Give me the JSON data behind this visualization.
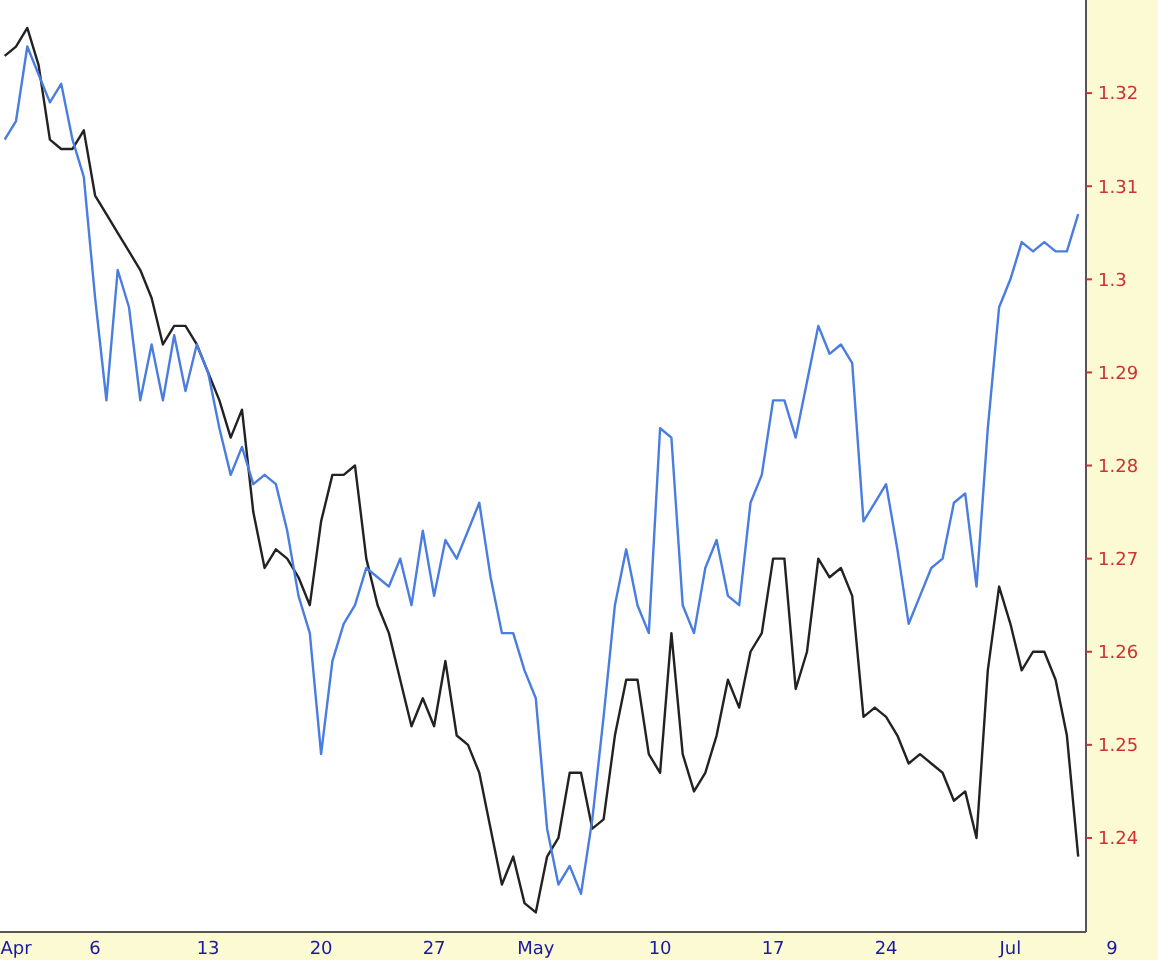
{
  "chart_data": {
    "type": "line",
    "ylim": [
      1.2299,
      1.33
    ],
    "categories": [
      null,
      "Apr",
      null,
      null,
      null,
      null,
      null,
      null,
      "6",
      null,
      null,
      null,
      null,
      null,
      null,
      null,
      null,
      null,
      "13",
      null,
      null,
      null,
      null,
      null,
      null,
      null,
      null,
      null,
      "20",
      null,
      null,
      null,
      null,
      null,
      null,
      null,
      null,
      null,
      "27",
      null,
      null,
      null,
      null,
      null,
      null,
      null,
      null,
      "May",
      null,
      null,
      null,
      null,
      null,
      null,
      null,
      null,
      null,
      null,
      "10",
      null,
      null,
      null,
      null,
      null,
      null,
      null,
      null,
      null,
      "17",
      null,
      null,
      null,
      null,
      null,
      null,
      null,
      null,
      null,
      "24",
      null,
      null,
      null,
      null,
      null,
      null,
      null,
      null,
      null,
      null,
      "Jul",
      null,
      null,
      null,
      null,
      null,
      null,
      null,
      null,
      "9"
    ],
    "yticks": [
      1.24,
      1.25,
      1.26,
      1.27,
      1.28,
      1.29,
      1.3,
      1.31,
      1.32
    ],
    "grid": false,
    "line_style": "solid",
    "marker": "none",
    "series": [
      {
        "color": "#222222",
        "values": [
          1.324,
          1.325,
          1.327,
          1.323,
          1.315,
          1.314,
          1.314,
          1.316,
          1.309,
          1.307,
          1.305,
          1.303,
          1.301,
          1.298,
          1.293,
          1.295,
          1.295,
          1.293,
          1.29,
          1.287,
          1.283,
          1.286,
          1.275,
          1.269,
          1.271,
          1.27,
          1.268,
          1.265,
          1.274,
          1.279,
          1.279,
          1.28,
          1.27,
          1.265,
          1.262,
          1.257,
          1.252,
          1.255,
          1.252,
          1.259,
          1.251,
          1.25,
          1.247,
          1.241,
          1.235,
          1.238,
          1.233,
          1.232,
          1.238,
          1.24,
          1.247,
          1.247,
          1.241,
          1.242,
          1.251,
          1.257,
          1.257,
          1.249,
          1.247,
          1.262,
          1.249,
          1.245,
          1.247,
          1.251,
          1.257,
          1.254,
          1.26,
          1.262,
          1.27,
          1.27,
          1.256,
          1.26,
          1.27,
          1.268,
          1.269,
          1.266,
          1.253,
          1.254,
          1.253,
          1.251,
          1.248,
          1.249,
          1.248,
          1.247,
          1.244,
          1.245,
          1.24,
          1.258,
          1.267,
          1.263,
          1.258,
          1.26,
          1.26,
          1.257,
          1.251,
          1.238,
          null,
          null,
          null
        ]
      },
      {
        "color": "#4a7de0",
        "values": [
          1.315,
          1.317,
          1.325,
          1.322,
          1.319,
          1.321,
          1.315,
          1.311,
          1.298,
          1.287,
          1.301,
          1.297,
          1.287,
          1.293,
          1.287,
          1.294,
          1.288,
          1.293,
          1.29,
          1.284,
          1.279,
          1.282,
          1.278,
          1.279,
          1.278,
          1.273,
          1.266,
          1.262,
          1.249,
          1.259,
          1.263,
          1.265,
          1.269,
          1.268,
          1.267,
          1.27,
          1.265,
          1.273,
          1.266,
          1.272,
          1.27,
          1.273,
          1.276,
          1.268,
          1.262,
          1.262,
          1.258,
          1.255,
          1.241,
          1.235,
          1.237,
          1.234,
          1.242,
          1.253,
          1.265,
          1.271,
          1.265,
          1.262,
          1.284,
          1.283,
          1.265,
          1.262,
          1.269,
          1.272,
          1.266,
          1.265,
          1.276,
          1.279,
          1.287,
          1.287,
          1.283,
          1.289,
          1.295,
          1.292,
          1.293,
          1.291,
          1.274,
          1.276,
          1.278,
          1.271,
          1.263,
          1.266,
          1.269,
          1.27,
          1.276,
          1.277,
          1.267,
          1.284,
          1.297,
          1.3,
          1.304,
          1.303,
          1.304,
          1.303,
          1.303,
          1.307,
          null,
          null,
          null
        ]
      }
    ]
  }
}
